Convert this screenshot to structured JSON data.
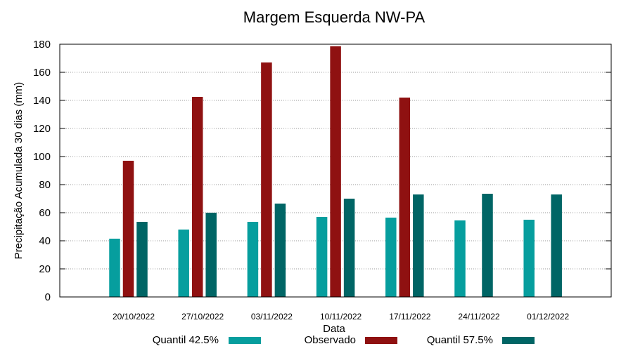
{
  "chart_data": {
    "type": "bar",
    "title": "Margem Esquerda NW-PA",
    "xlabel": "Data",
    "ylabel": "Precipitação Acumulada 30 dias (mm)",
    "ylim": [
      0,
      180
    ],
    "yticks": [
      0,
      20,
      40,
      60,
      80,
      100,
      120,
      140,
      160,
      180
    ],
    "grid": true,
    "legend_position": "bottom",
    "categories": [
      "20/10/2022",
      "27/10/2022",
      "03/11/2022",
      "10/11/2022",
      "17/11/2022",
      "24/11/2022",
      "01/12/2022"
    ],
    "series": [
      {
        "name": "Quantil 42.5%",
        "color": "#069e9e",
        "values": [
          41.5,
          48,
          53.5,
          57,
          56.5,
          54.5,
          55
        ]
      },
      {
        "name": "Observado",
        "color": "#8f1111",
        "values": [
          97,
          142.5,
          167,
          178.5,
          142,
          null,
          null
        ]
      },
      {
        "name": "Quantil 57.5%",
        "color": "#006565",
        "values": [
          53.5,
          60,
          66.5,
          70,
          73,
          73.5,
          73
        ]
      }
    ]
  }
}
